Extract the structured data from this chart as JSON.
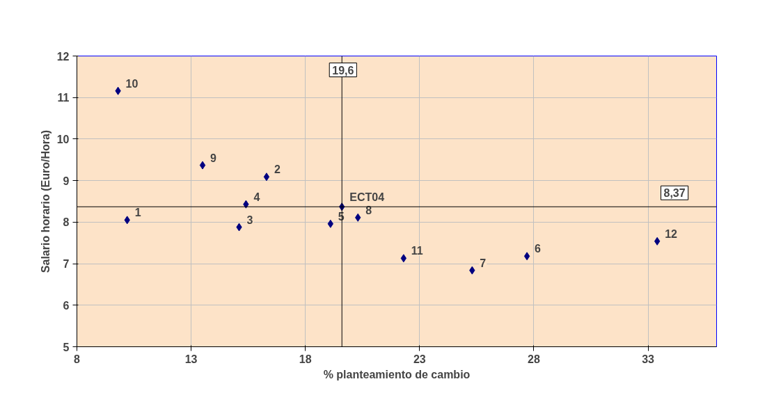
{
  "chart_data": {
    "type": "scatter",
    "xlabel": "% planteamiento de cambio",
    "ylabel": "Salario horario (Euro/Hora)",
    "x": [
      9.8,
      10.2,
      13.5,
      16.3,
      15.4,
      15.1,
      19.1,
      19.6,
      20.3,
      22.3,
      25.3,
      27.7,
      33.4
    ],
    "series": [
      {
        "color": "#000080",
        "values": [
          11.16,
          8.05,
          9.37,
          9.09,
          8.43,
          7.88,
          7.96,
          8.37,
          8.11,
          7.13,
          6.84,
          7.18,
          7.54
        ]
      }
    ],
    "annotations": [
      {
        "text": "10",
        "x": 9.8,
        "y": 11.16
      },
      {
        "text": "1",
        "x": 10.2,
        "y": 8.05
      },
      {
        "text": "9",
        "x": 13.5,
        "y": 9.37
      },
      {
        "text": "2",
        "x": 16.3,
        "y": 9.09
      },
      {
        "text": "4",
        "x": 15.4,
        "y": 8.43
      },
      {
        "text": "3",
        "x": 15.1,
        "y": 7.88
      },
      {
        "text": "5",
        "x": 19.1,
        "y": 7.96
      },
      {
        "text": "ECT04",
        "x": 19.6,
        "y": 8.37
      },
      {
        "text": "8",
        "x": 20.3,
        "y": 8.11
      },
      {
        "text": "11",
        "x": 22.3,
        "y": 7.13
      },
      {
        "text": "7",
        "x": 25.3,
        "y": 6.84
      },
      {
        "text": "6",
        "x": 27.7,
        "y": 7.18
      },
      {
        "text": "12",
        "x": 33.4,
        "y": 7.54
      }
    ],
    "ref_lines": [
      {
        "axis": "x",
        "value": 19.6,
        "label": "19,6",
        "color": "#000000"
      },
      {
        "axis": "y",
        "value": 8.37,
        "label": "8,37",
        "color": "#000000"
      }
    ],
    "xlim": [
      8,
      36
    ],
    "ylim": [
      5,
      12
    ],
    "xticks": [
      8,
      13,
      18,
      23,
      28,
      33
    ],
    "yticks": [
      5,
      6,
      7,
      8,
      9,
      10,
      11,
      12
    ],
    "grid": true,
    "marker": "diamond"
  }
}
